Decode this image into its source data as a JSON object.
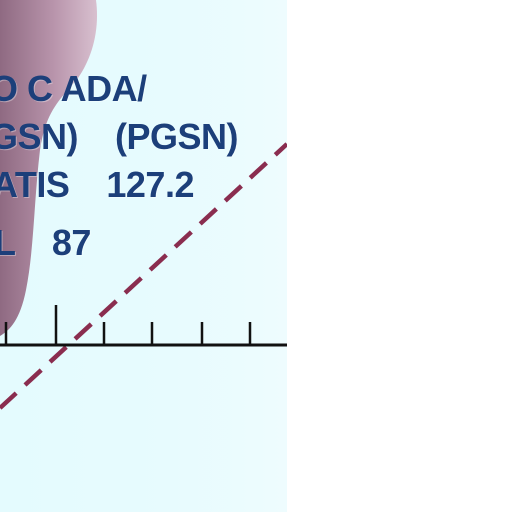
{
  "labels": {
    "line1": "O C ADA/",
    "line2a": "GSN)",
    "line2b": "(PGSN)",
    "line3a": "ATIS",
    "line3b": "127.2",
    "line4a": "L",
    "line4b": "87"
  },
  "colors": {
    "panel_bg": "#e4fbfe",
    "text": "#1c3f7a",
    "ribbon": "#a27a93",
    "axis": "#111111",
    "dashed_line": "#8a2d4f"
  }
}
